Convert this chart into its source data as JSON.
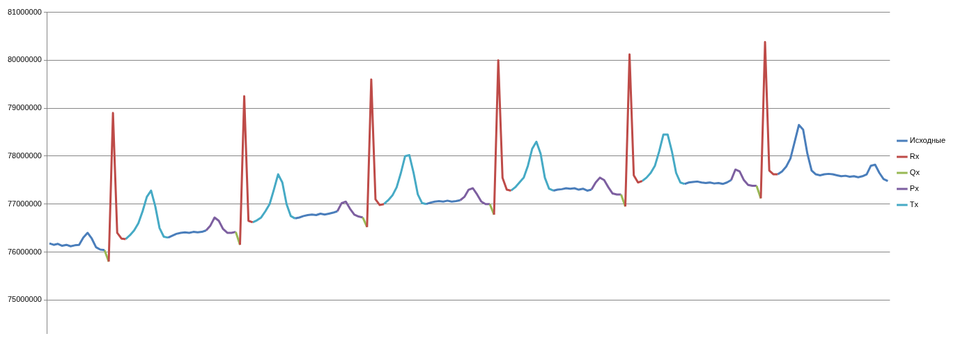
{
  "chart_data": {
    "type": "line",
    "categories": [
      null,
      null,
      null,
      null,
      null,
      null,
      null,
      null,
      null,
      null,
      null,
      null,
      null,
      null,
      null,
      null,
      null,
      null,
      null,
      null,
      null,
      null,
      null,
      null,
      null,
      null,
      null,
      null,
      null,
      null,
      null,
      null,
      null,
      null,
      null,
      null,
      null,
      null,
      null,
      null,
      null,
      null,
      null,
      null,
      null,
      null,
      null,
      null,
      null,
      null,
      null,
      null,
      null,
      null,
      null,
      null,
      null,
      null,
      null,
      null,
      null,
      null,
      null,
      null,
      null,
      null,
      null,
      null,
      null,
      null,
      null,
      null,
      null,
      null,
      null,
      null,
      null,
      null,
      null,
      null,
      null,
      null,
      null,
      null,
      null,
      null,
      null,
      null,
      null,
      null,
      null,
      null,
      null,
      null,
      null,
      null,
      null,
      null,
      null,
      null,
      null,
      null,
      null,
      null,
      null,
      null,
      null,
      null,
      null,
      null,
      null,
      null,
      null,
      null,
      null,
      null,
      null,
      null,
      null,
      null,
      null,
      null,
      null,
      null,
      null,
      null,
      null,
      null,
      null,
      null,
      null,
      null,
      null,
      null,
      null,
      null,
      null,
      null,
      null,
      null,
      null,
      null,
      null,
      null,
      null,
      null,
      null,
      null,
      null,
      null,
      null,
      null,
      null,
      null,
      null,
      null,
      null,
      null,
      null,
      null,
      null,
      null,
      null,
      null,
      null,
      null,
      null,
      null,
      null,
      null,
      null,
      null,
      null,
      null,
      null,
      null,
      null,
      null,
      null,
      null,
      null,
      null,
      null,
      null,
      null,
      null,
      null,
      null,
      null,
      null,
      null,
      null,
      null,
      null,
      null,
      null,
      null,
      null,
      null
    ],
    "series": [
      {
        "name": "Исходные",
        "color": "#4a7ebb",
        "values": [
          76180000,
          76150000,
          76170000,
          76130000,
          76150000,
          76120000,
          76140000,
          76150000,
          76300000,
          76400000,
          76280000,
          76100000,
          76050000,
          76040000,
          null,
          null,
          null,
          null,
          null,
          null,
          null,
          null,
          null,
          null,
          null,
          null,
          null,
          null,
          76300000,
          76340000,
          76380000,
          76400000,
          76410000,
          76400000,
          76420000,
          76410000,
          76420000,
          76450000,
          null,
          null,
          null,
          null,
          null,
          null,
          null,
          null,
          null,
          null,
          null,
          null,
          null,
          null,
          null,
          null,
          null,
          null,
          null,
          null,
          76700000,
          76720000,
          76750000,
          76770000,
          76780000,
          76770000,
          76800000,
          76780000,
          76800000,
          76820000,
          76850000,
          null,
          null,
          null,
          null,
          null,
          null,
          null,
          null,
          null,
          null,
          null,
          null,
          null,
          null,
          null,
          null,
          null,
          null,
          null,
          null,
          77000000,
          77030000,
          77050000,
          77060000,
          77050000,
          77070000,
          77050000,
          77060000,
          77080000,
          null,
          null,
          null,
          null,
          null,
          null,
          null,
          null,
          null,
          null,
          null,
          null,
          null,
          null,
          null,
          null,
          null,
          null,
          null,
          null,
          null,
          77280000,
          77300000,
          77310000,
          77330000,
          77320000,
          77330000,
          77300000,
          77320000,
          77280000,
          77300000,
          null,
          null,
          null,
          null,
          null,
          null,
          null,
          null,
          null,
          null,
          null,
          null,
          null,
          null,
          null,
          null,
          null,
          null,
          null,
          null,
          null,
          77420000,
          77450000,
          77460000,
          77470000,
          77450000,
          77440000,
          77450000,
          77430000,
          77440000,
          77420000,
          77450000,
          77500000,
          null,
          null,
          null,
          null,
          null,
          null,
          null,
          null,
          null,
          null,
          77620000,
          77680000,
          77780000,
          77950000,
          78300000,
          78650000,
          78550000,
          78050000,
          77700000,
          77620000,
          77600000,
          77620000,
          77630000,
          77620000,
          77600000,
          77580000,
          77590000,
          77570000,
          77580000,
          77560000,
          77580000,
          77620000,
          77800000,
          77820000,
          77650000,
          77520000,
          77480000
        ]
      },
      {
        "name": "Rx",
        "color": "#be4b48",
        "values": [
          null,
          null,
          null,
          null,
          null,
          null,
          null,
          null,
          null,
          null,
          null,
          null,
          null,
          null,
          75800000,
          78900000,
          76400000,
          76280000,
          76270000,
          null,
          null,
          null,
          null,
          null,
          null,
          null,
          null,
          null,
          null,
          null,
          null,
          null,
          null,
          null,
          null,
          null,
          null,
          null,
          null,
          null,
          null,
          null,
          null,
          null,
          null,
          76150000,
          79250000,
          76650000,
          76620000,
          null,
          null,
          null,
          null,
          null,
          null,
          null,
          null,
          null,
          null,
          null,
          null,
          null,
          null,
          null,
          null,
          null,
          null,
          null,
          null,
          null,
          null,
          null,
          null,
          null,
          null,
          76520000,
          79600000,
          77100000,
          76980000,
          77000000,
          null,
          null,
          null,
          null,
          null,
          null,
          null,
          null,
          null,
          null,
          null,
          null,
          null,
          null,
          null,
          null,
          null,
          null,
          null,
          null,
          null,
          null,
          null,
          null,
          null,
          76780000,
          80000000,
          77550000,
          77300000,
          77280000,
          null,
          null,
          null,
          null,
          null,
          null,
          null,
          null,
          null,
          null,
          null,
          null,
          null,
          null,
          null,
          null,
          null,
          null,
          null,
          null,
          null,
          null,
          null,
          null,
          null,
          null,
          76950000,
          80120000,
          77600000,
          77450000,
          77480000,
          null,
          null,
          null,
          null,
          null,
          null,
          null,
          null,
          null,
          null,
          null,
          null,
          null,
          null,
          null,
          null,
          null,
          null,
          null,
          null,
          null,
          null,
          null,
          null,
          null,
          null,
          null,
          77120000,
          80380000,
          77700000,
          77620000,
          77620000,
          null,
          null,
          null,
          null,
          null,
          null,
          null,
          null,
          null,
          null,
          null,
          null,
          null,
          null,
          null,
          null,
          null,
          null,
          null,
          null,
          null,
          null,
          null,
          null,
          null,
          null
        ]
      },
      {
        "name": "Qx",
        "color": "#98b954",
        "values": [
          null,
          null,
          null,
          null,
          null,
          null,
          null,
          null,
          null,
          null,
          null,
          null,
          null,
          76040000,
          75800000,
          null,
          null,
          null,
          null,
          null,
          null,
          null,
          null,
          null,
          null,
          null,
          null,
          null,
          null,
          null,
          null,
          null,
          null,
          null,
          null,
          null,
          null,
          null,
          null,
          null,
          null,
          null,
          null,
          null,
          76420000,
          76150000,
          null,
          null,
          null,
          null,
          null,
          null,
          null,
          null,
          null,
          null,
          null,
          null,
          null,
          null,
          null,
          null,
          null,
          null,
          null,
          null,
          null,
          null,
          null,
          null,
          null,
          null,
          null,
          null,
          76720000,
          76520000,
          null,
          null,
          null,
          null,
          null,
          null,
          null,
          null,
          null,
          null,
          null,
          null,
          null,
          null,
          null,
          null,
          null,
          null,
          null,
          null,
          null,
          null,
          null,
          null,
          null,
          null,
          null,
          null,
          77000000,
          76780000,
          null,
          null,
          null,
          null,
          null,
          null,
          null,
          null,
          null,
          null,
          null,
          null,
          null,
          null,
          null,
          null,
          null,
          null,
          null,
          null,
          null,
          null,
          null,
          null,
          null,
          null,
          null,
          null,
          null,
          77200000,
          76950000,
          null,
          null,
          null,
          null,
          null,
          null,
          null,
          null,
          null,
          null,
          null,
          null,
          null,
          null,
          null,
          null,
          null,
          null,
          null,
          null,
          null,
          null,
          null,
          null,
          null,
          null,
          null,
          null,
          null,
          null,
          77380000,
          77120000,
          null,
          null,
          null,
          null,
          null,
          null,
          null,
          null,
          null,
          null,
          null,
          null,
          null,
          null,
          null,
          null,
          null,
          null,
          null,
          null,
          null,
          null,
          null,
          null,
          null,
          null,
          null,
          null,
          null,
          null
        ]
      },
      {
        "name": "Px",
        "color": "#7d5fa0",
        "values": [
          null,
          null,
          null,
          null,
          null,
          null,
          null,
          null,
          null,
          null,
          null,
          null,
          null,
          null,
          null,
          null,
          null,
          null,
          null,
          null,
          null,
          null,
          null,
          null,
          null,
          null,
          null,
          null,
          null,
          null,
          null,
          null,
          null,
          null,
          null,
          null,
          null,
          76450000,
          76550000,
          76720000,
          76650000,
          76480000,
          76400000,
          76400000,
          76420000,
          null,
          null,
          null,
          null,
          null,
          null,
          null,
          null,
          null,
          null,
          null,
          null,
          null,
          null,
          null,
          null,
          null,
          null,
          null,
          null,
          null,
          null,
          null,
          76850000,
          77020000,
          77050000,
          76900000,
          76780000,
          76740000,
          76720000,
          null,
          null,
          null,
          null,
          null,
          null,
          null,
          null,
          null,
          null,
          null,
          null,
          null,
          null,
          null,
          null,
          null,
          null,
          null,
          null,
          null,
          null,
          77080000,
          77150000,
          77300000,
          77330000,
          77200000,
          77050000,
          77000000,
          77000000,
          null,
          null,
          null,
          null,
          null,
          null,
          null,
          null,
          null,
          null,
          null,
          null,
          null,
          null,
          null,
          null,
          null,
          null,
          null,
          null,
          null,
          null,
          null,
          77300000,
          77450000,
          77550000,
          77500000,
          77350000,
          77220000,
          77200000,
          77200000,
          null,
          null,
          null,
          null,
          null,
          null,
          null,
          null,
          null,
          null,
          null,
          null,
          null,
          null,
          null,
          null,
          null,
          null,
          null,
          null,
          null,
          null,
          null,
          null,
          null,
          77500000,
          77720000,
          77680000,
          77500000,
          77400000,
          77380000,
          77380000,
          null,
          null,
          null,
          null,
          null,
          null,
          null,
          null,
          null,
          null,
          null,
          null,
          null,
          null,
          null,
          null,
          null,
          null,
          null,
          null,
          null,
          null,
          null,
          null,
          null,
          null,
          null,
          null,
          null,
          null,
          null
        ]
      },
      {
        "name": "Tx",
        "color": "#46aac5",
        "values": [
          null,
          null,
          null,
          null,
          null,
          null,
          null,
          null,
          null,
          null,
          null,
          null,
          null,
          null,
          null,
          null,
          null,
          null,
          76270000,
          76350000,
          76450000,
          76600000,
          76850000,
          77150000,
          77280000,
          76950000,
          76500000,
          76320000,
          76300000,
          null,
          null,
          null,
          null,
          null,
          null,
          null,
          null,
          null,
          null,
          null,
          null,
          null,
          null,
          null,
          null,
          null,
          null,
          null,
          76620000,
          76660000,
          76720000,
          76850000,
          77000000,
          77300000,
          77620000,
          77450000,
          77000000,
          76750000,
          76700000,
          null,
          null,
          null,
          null,
          null,
          null,
          null,
          null,
          null,
          null,
          null,
          null,
          null,
          null,
          null,
          null,
          null,
          null,
          null,
          null,
          77000000,
          77080000,
          77180000,
          77350000,
          77650000,
          78000000,
          78020000,
          77650000,
          77200000,
          77020000,
          77000000,
          null,
          null,
          null,
          null,
          null,
          null,
          null,
          null,
          null,
          null,
          null,
          null,
          null,
          null,
          null,
          null,
          null,
          null,
          null,
          77280000,
          77350000,
          77450000,
          77550000,
          77800000,
          78150000,
          78300000,
          78050000,
          77550000,
          77320000,
          77280000,
          null,
          null,
          null,
          null,
          null,
          null,
          null,
          null,
          null,
          null,
          null,
          null,
          null,
          null,
          null,
          null,
          null,
          null,
          null,
          null,
          77480000,
          77550000,
          77650000,
          77800000,
          78100000,
          78450000,
          78450000,
          78100000,
          77650000,
          77450000,
          77420000,
          null,
          null,
          null,
          null,
          null,
          null,
          null,
          null,
          null,
          null,
          null,
          null,
          null,
          null,
          null,
          null,
          null,
          null,
          null,
          null,
          null,
          null,
          null,
          null,
          null,
          null,
          null,
          null,
          null,
          null,
          null,
          null,
          null,
          null,
          null,
          null,
          null,
          null,
          null,
          null,
          null,
          null,
          null,
          null,
          null,
          null,
          null,
          null
        ]
      }
    ],
    "ylim": [
      74300000,
      81000000
    ],
    "yticks": [
      75000000,
      76000000,
      77000000,
      78000000,
      79000000,
      80000000,
      81000000
    ],
    "grid": "y",
    "legend": "right",
    "marker": "none",
    "tick_labels": "y"
  }
}
